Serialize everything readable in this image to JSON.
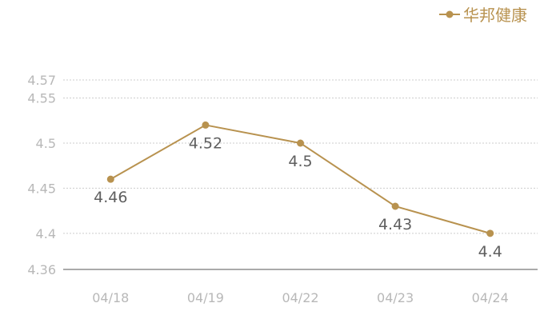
{
  "chart_data": {
    "type": "line",
    "categories": [
      "04/18",
      "04/19",
      "04/22",
      "04/23",
      "04/24"
    ],
    "series": [
      {
        "name": "华邦健康",
        "values": [
          4.46,
          4.52,
          4.5,
          4.43,
          4.4
        ],
        "value_labels": [
          "4.46",
          "4.52",
          "4.5",
          "4.43",
          "4.4"
        ],
        "color": "#b8924f"
      }
    ],
    "yticks": [
      {
        "value": 4.36,
        "label": "4.36"
      },
      {
        "value": 4.4,
        "label": "4.4"
      },
      {
        "value": 4.45,
        "label": "4.45"
      },
      {
        "value": 4.5,
        "label": "4.5"
      },
      {
        "value": 4.55,
        "label": "4.55"
      },
      {
        "value": 4.57,
        "label": "4.57"
      }
    ],
    "ylim": [
      4.36,
      4.57
    ],
    "title": "",
    "xlabel": "",
    "ylabel": "",
    "grid": "horizontal dotted",
    "legend_position": "top-right"
  },
  "colors": {
    "series": "#b8924f",
    "axis": "#555555",
    "grid": "#cccccc",
    "tick_text": "#b8b8b8",
    "label_text": "#5f5f5f"
  }
}
